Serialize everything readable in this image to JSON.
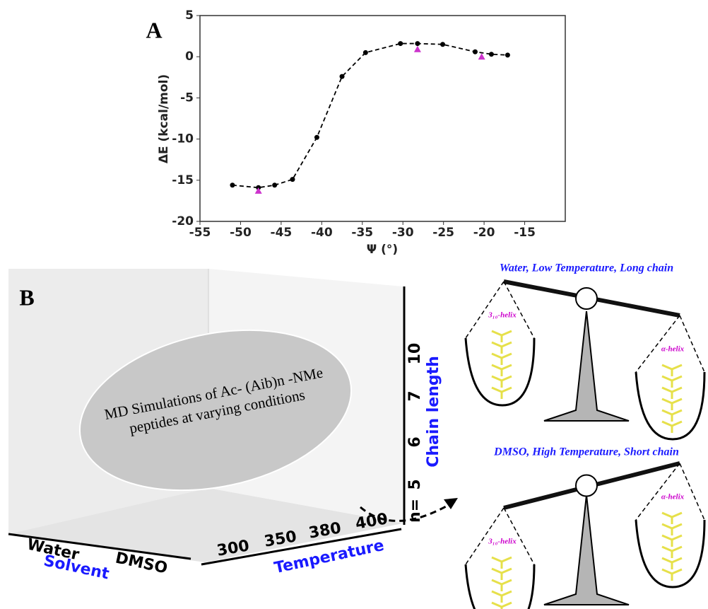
{
  "chart_data": {
    "type": "line",
    "panel_label": "A",
    "xlabel": "Ψ (°)",
    "ylabel": "ΔE (kcal/mol)",
    "xlim": [
      -55,
      -10
    ],
    "ylim": [
      -20,
      5
    ],
    "xticks": [
      -55,
      -50,
      -45,
      -40,
      -35,
      -30,
      -25,
      -20,
      -15
    ],
    "yticks": [
      -20,
      -15,
      -10,
      -5,
      0,
      5
    ],
    "grid": false,
    "series": [
      {
        "color": "#000000",
        "marker": "circle",
        "linestyle": "dashed",
        "x": [
          -51.0,
          -47.8,
          -45.8,
          -43.6,
          -40.6,
          -37.5,
          -34.6,
          -30.3,
          -28.2,
          -25.1,
          -21.1,
          -19.1,
          -17.1
        ],
        "values": [
          -15.6,
          -15.9,
          -15.6,
          -14.9,
          -9.8,
          -2.4,
          0.5,
          1.6,
          1.6,
          1.5,
          0.6,
          0.3,
          0.2
        ]
      },
      {
        "color": "#cc33cc",
        "marker": "triangle",
        "linestyle": "none",
        "x": [
          -47.8,
          -28.2,
          -20.3
        ],
        "values": [
          -16.3,
          0.9,
          0.0
        ]
      }
    ]
  },
  "panel_b": {
    "label": "B",
    "ellipse_text": [
      "MD Simulations of Ac- (Aib)n -NMe",
      "peptides at varying conditions"
    ],
    "solvent_ticks": [
      "Water",
      "DMSO"
    ],
    "solvent_label": "Solvent",
    "temperature_ticks": [
      "300",
      "350",
      "380",
      "400"
    ],
    "temperature_label": "Temperature",
    "chain_ticks": [
      "n=",
      "5",
      "6",
      "7",
      "10"
    ],
    "chain_label": "Chain length",
    "scale_top": {
      "title": "Water, Low Temperature, Long chain",
      "left": "3₁₀-helix",
      "right": "α-helix"
    },
    "scale_bottom": {
      "title": "DMSO, High Temperature, Short chain",
      "left": "3₁₀-helix",
      "right": "α-helix"
    }
  }
}
